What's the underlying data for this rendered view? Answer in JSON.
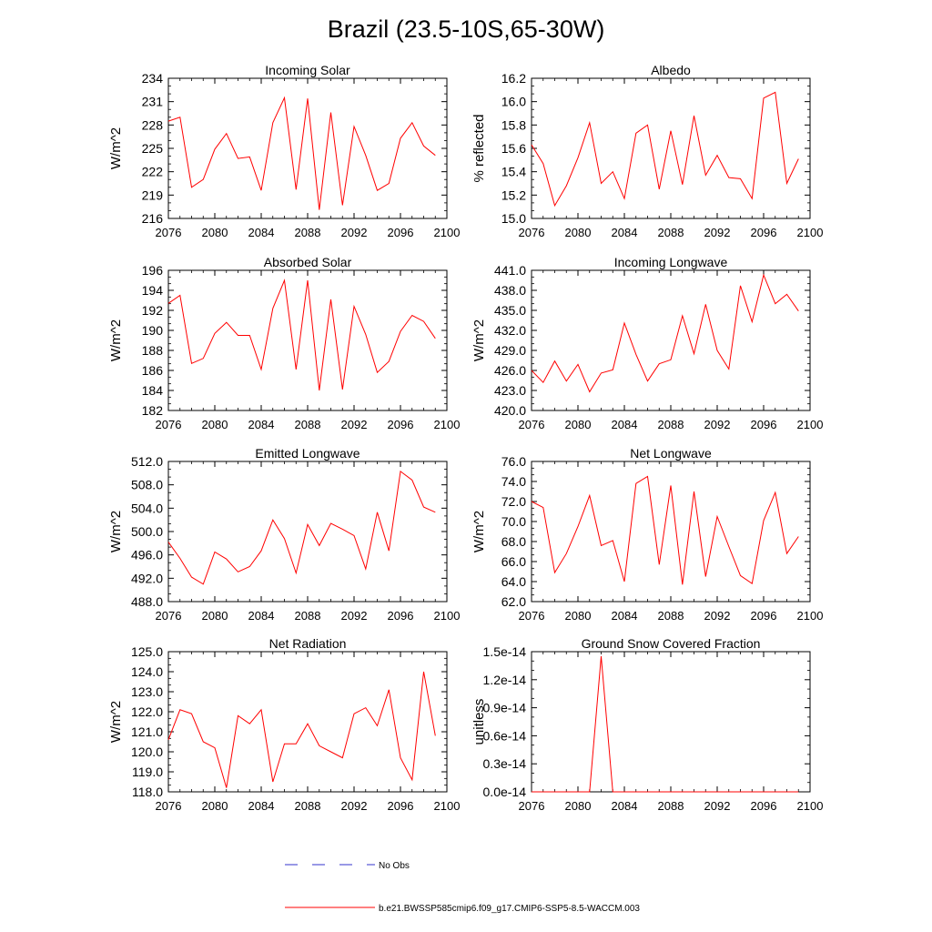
{
  "page_title": "Brazil (23.5-10S,65-30W)",
  "colors": {
    "model_line": "#ff0000",
    "obs_line": "#3333cc",
    "axis": "#000000"
  },
  "legend": {
    "obs_label": "No Obs",
    "model_label": "b.e21.BWSSP585cmip6.f09_g17.CMIP6-SSP5-8.5-WACCM.003"
  },
  "chart_data": [
    {
      "type": "line",
      "title": "Incoming Solar",
      "ylabel": "W/m^2",
      "xlim": [
        2076,
        2100
      ],
      "ylim": [
        216,
        234
      ],
      "xticks": [
        2076,
        2080,
        2084,
        2088,
        2092,
        2096,
        2100
      ],
      "yticks": [
        "216",
        "219",
        "222",
        "225",
        "228",
        "231",
        "234"
      ],
      "x": [
        2076,
        2077,
        2078,
        2079,
        2080,
        2081,
        2082,
        2083,
        2084,
        2085,
        2086,
        2087,
        2088,
        2089,
        2090,
        2091,
        2092,
        2093,
        2094,
        2095,
        2096,
        2097,
        2098,
        2099
      ],
      "values": [
        228.5,
        229.0,
        220.0,
        221.0,
        224.9,
        226.9,
        223.7,
        223.9,
        219.6,
        228.3,
        231.5,
        219.7,
        231.4,
        217.1,
        229.6,
        217.7,
        227.8,
        224.1,
        219.6,
        220.5,
        226.3,
        228.3,
        225.3,
        224.1
      ]
    },
    {
      "type": "line",
      "title": "Albedo",
      "ylabel": "% reflected",
      "xlim": [
        2076,
        2100
      ],
      "ylim": [
        15.0,
        16.2
      ],
      "xticks": [
        2076,
        2080,
        2084,
        2088,
        2092,
        2096,
        2100
      ],
      "yticks": [
        "15.0",
        "15.2",
        "15.4",
        "15.6",
        "15.8",
        "16.0",
        "16.2"
      ],
      "x": [
        2076,
        2077,
        2078,
        2079,
        2080,
        2081,
        2082,
        2083,
        2084,
        2085,
        2086,
        2087,
        2088,
        2089,
        2090,
        2091,
        2092,
        2093,
        2094,
        2095,
        2096,
        2097,
        2098,
        2099
      ],
      "values": [
        15.63,
        15.47,
        15.11,
        15.28,
        15.52,
        15.82,
        15.3,
        15.4,
        15.17,
        15.73,
        15.8,
        15.25,
        15.75,
        15.29,
        15.88,
        15.37,
        15.54,
        15.35,
        15.34,
        15.17,
        16.03,
        16.08,
        15.3,
        15.51
      ]
    },
    {
      "type": "line",
      "title": "Absorbed Solar",
      "ylabel": "W/m^2",
      "xlim": [
        2076,
        2100
      ],
      "ylim": [
        182,
        196
      ],
      "xticks": [
        2076,
        2080,
        2084,
        2088,
        2092,
        2096,
        2100
      ],
      "yticks": [
        "182",
        "184",
        "186",
        "188",
        "190",
        "192",
        "194",
        "196"
      ],
      "x": [
        2076,
        2077,
        2078,
        2079,
        2080,
        2081,
        2082,
        2083,
        2084,
        2085,
        2086,
        2087,
        2088,
        2089,
        2090,
        2091,
        2092,
        2093,
        2094,
        2095,
        2096,
        2097,
        2098,
        2099
      ],
      "values": [
        192.7,
        193.5,
        186.7,
        187.2,
        189.7,
        190.8,
        189.5,
        189.5,
        186.1,
        192.2,
        195.0,
        186.1,
        195.0,
        184.0,
        193.1,
        184.1,
        192.4,
        189.6,
        185.8,
        186.9,
        189.9,
        191.5,
        190.9,
        189.2
      ]
    },
    {
      "type": "line",
      "title": "Incoming Longwave",
      "ylabel": "W/m^2",
      "xlim": [
        2076,
        2100
      ],
      "ylim": [
        420.0,
        441.0
      ],
      "xticks": [
        2076,
        2080,
        2084,
        2088,
        2092,
        2096,
        2100
      ],
      "yticks": [
        "420.0",
        "423.0",
        "426.0",
        "429.0",
        "432.0",
        "435.0",
        "438.0",
        "441.0"
      ],
      "x": [
        2076,
        2077,
        2078,
        2079,
        2080,
        2081,
        2082,
        2083,
        2084,
        2085,
        2086,
        2087,
        2088,
        2089,
        2090,
        2091,
        2092,
        2093,
        2094,
        2095,
        2096,
        2097,
        2098,
        2099
      ],
      "values": [
        426.0,
        424.2,
        427.4,
        424.4,
        426.9,
        422.8,
        425.6,
        426.1,
        433.1,
        428.4,
        424.4,
        427.0,
        427.6,
        434.2,
        428.5,
        435.9,
        429.0,
        426.2,
        438.7,
        433.3,
        440.3,
        436.0,
        437.4,
        434.9
      ]
    },
    {
      "type": "line",
      "title": "Emitted Longwave",
      "ylabel": "W/m^2",
      "xlim": [
        2076,
        2100
      ],
      "ylim": [
        488.0,
        512.0
      ],
      "xticks": [
        2076,
        2080,
        2084,
        2088,
        2092,
        2096,
        2100
      ],
      "yticks": [
        "488.0",
        "492.0",
        "496.0",
        "500.0",
        "504.0",
        "508.0",
        "512.0"
      ],
      "x": [
        2076,
        2077,
        2078,
        2079,
        2080,
        2081,
        2082,
        2083,
        2084,
        2085,
        2086,
        2087,
        2088,
        2089,
        2090,
        2091,
        2092,
        2093,
        2094,
        2095,
        2096,
        2097,
        2098,
        2099
      ],
      "values": [
        498.2,
        495.4,
        492.2,
        491.0,
        496.5,
        495.3,
        493.1,
        494.0,
        496.7,
        502.0,
        498.8,
        492.9,
        501.2,
        497.6,
        501.4,
        500.4,
        499.3,
        493.6,
        503.3,
        496.7,
        510.3,
        508.8,
        504.2,
        503.3
      ]
    },
    {
      "type": "line",
      "title": "Net Longwave",
      "ylabel": "W/m^2",
      "xlim": [
        2076,
        2100
      ],
      "ylim": [
        62.0,
        76.0
      ],
      "xticks": [
        2076,
        2080,
        2084,
        2088,
        2092,
        2096,
        2100
      ],
      "yticks": [
        "62.0",
        "64.0",
        "66.0",
        "68.0",
        "70.0",
        "72.0",
        "74.0",
        "76.0"
      ],
      "x": [
        2076,
        2077,
        2078,
        2079,
        2080,
        2081,
        2082,
        2083,
        2084,
        2085,
        2086,
        2087,
        2088,
        2089,
        2090,
        2091,
        2092,
        2093,
        2094,
        2095,
        2096,
        2097,
        2098,
        2099
      ],
      "values": [
        72.0,
        71.4,
        64.9,
        66.8,
        69.5,
        72.6,
        67.6,
        68.1,
        64.0,
        73.8,
        74.5,
        65.7,
        73.6,
        63.7,
        73.0,
        64.5,
        70.5,
        67.5,
        64.6,
        63.8,
        70.1,
        72.9,
        66.8,
        68.5
      ]
    },
    {
      "type": "line",
      "title": "Net Radiation",
      "ylabel": "W/m^2",
      "xlim": [
        2076,
        2100
      ],
      "ylim": [
        118.0,
        125.0
      ],
      "xticks": [
        2076,
        2080,
        2084,
        2088,
        2092,
        2096,
        2100
      ],
      "yticks": [
        "118.0",
        "119.0",
        "120.0",
        "121.0",
        "122.0",
        "123.0",
        "124.0",
        "125.0"
      ],
      "x": [
        2076,
        2077,
        2078,
        2079,
        2080,
        2081,
        2082,
        2083,
        2084,
        2085,
        2086,
        2087,
        2088,
        2089,
        2090,
        2091,
        2092,
        2093,
        2094,
        2095,
        2096,
        2097,
        2098,
        2099
      ],
      "values": [
        120.6,
        122.1,
        121.9,
        120.5,
        120.2,
        118.2,
        121.8,
        121.4,
        122.1,
        118.5,
        120.4,
        120.4,
        121.4,
        120.3,
        120.0,
        119.7,
        121.9,
        122.2,
        121.3,
        123.1,
        119.7,
        118.6,
        124.0,
        120.8
      ]
    },
    {
      "type": "line",
      "title": "Ground Snow Covered Fraction",
      "ylabel": "unitless",
      "xlim": [
        2076,
        2100
      ],
      "ylim": [
        0.0,
        1.5
      ],
      "y_scale_note": "values in units of 1e-14",
      "xticks": [
        2076,
        2080,
        2084,
        2088,
        2092,
        2096,
        2100
      ],
      "yticks": [
        "0.0e-14",
        "0.3e-14",
        "0.6e-14",
        "0.9e-14",
        "1.2e-14",
        "1.5e-14"
      ],
      "x": [
        2076,
        2077,
        2078,
        2079,
        2080,
        2081,
        2082,
        2083,
        2084,
        2085,
        2086,
        2087,
        2088,
        2089,
        2090,
        2091,
        2092,
        2093,
        2094,
        2095,
        2096,
        2097,
        2098,
        2099
      ],
      "values": [
        0,
        0,
        0,
        0,
        0,
        0,
        1.45,
        0,
        0,
        0,
        0,
        0,
        0,
        0,
        0,
        0,
        0,
        0,
        0,
        0,
        0,
        0,
        0,
        0
      ]
    }
  ]
}
